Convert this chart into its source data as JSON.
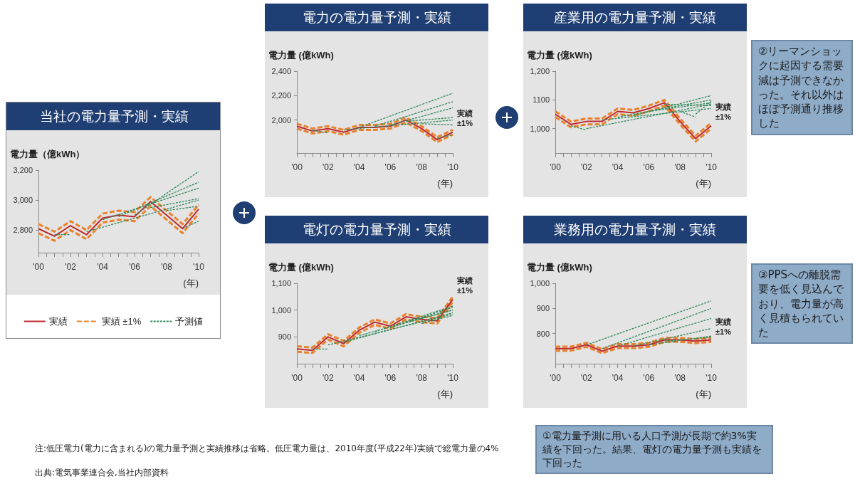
{
  "chart_data": [
    {
      "type": "line",
      "title": "当社の電力量予測・実績",
      "ylabel": "電力量（億kWh）",
      "xlabel": "(年)",
      "x": [
        2000,
        2001,
        2002,
        2003,
        2004,
        2005,
        2006,
        2007,
        2008,
        2009,
        2010
      ],
      "xlim": [
        2000,
        2010
      ],
      "xticks": [
        {
          "value": 2000,
          "label": "'00"
        },
        {
          "value": 2001,
          "label": null
        },
        {
          "value": 2002,
          "label": "'02"
        },
        {
          "value": 2003,
          "label": null
        },
        {
          "value": 2004,
          "label": "'04"
        },
        {
          "value": 2005,
          "label": null
        },
        {
          "value": 2006,
          "label": "'06"
        },
        {
          "value": 2007,
          "label": null
        },
        {
          "value": 2008,
          "label": "'08"
        },
        {
          "value": 2009,
          "label": null
        },
        {
          "value": 2010,
          "label": "'10"
        }
      ],
      "ylim": [
        2650,
        3200
      ],
      "yticks": [
        {
          "value": 2800,
          "label": "2,800"
        },
        {
          "value": 3000,
          "label": "3,000"
        },
        {
          "value": 3200,
          "label": "3,200"
        }
      ],
      "legend": "bottom",
      "marker": "none",
      "grid": false,
      "series": [
        {
          "name": "実績",
          "color": "#c0282d",
          "line_style": "solid",
          "values": [
            2810,
            2760,
            2830,
            2770,
            2880,
            2900,
            2890,
            2990,
            2900,
            2810,
            2940
          ]
        },
        {
          "name": "実績 ±1%",
          "color": "#e8822c",
          "line_style": "dashed",
          "values": [
            2840,
            2790,
            2860,
            2800,
            2910,
            2930,
            2920,
            3020,
            2930,
            2840,
            2970
          ]
        },
        {
          "color": "#e8822c",
          "line_style": "dashed",
          "values": [
            2780,
            2730,
            2800,
            2740,
            2850,
            2870,
            2860,
            2960,
            2870,
            2780,
            2910
          ]
        },
        {
          "name": "予測値",
          "color": "#2f8a5a",
          "line_style": "dashed",
          "x": [
            2001,
            2002
          ],
          "values": [
            2770,
            2770
          ]
        },
        {
          "color": "#2f8a5a",
          "line_style": "dashed",
          "x": [
            2003,
            2010
          ],
          "values": [
            2790,
            3000
          ]
        },
        {
          "color": "#2f8a5a",
          "line_style": "dashed",
          "x": [
            2004,
            2010
          ],
          "values": [
            2870,
            3080
          ]
        },
        {
          "color": "#2f8a5a",
          "line_style": "dashed",
          "x": [
            2005,
            2010
          ],
          "values": [
            2890,
            3120
          ]
        },
        {
          "color": "#2f8a5a",
          "line_style": "dashed",
          "x": [
            2006,
            2010
          ],
          "values": [
            2900,
            3190
          ]
        },
        {
          "color": "#2f8a5a",
          "line_style": "dashed",
          "x": [
            2007,
            2010
          ],
          "values": [
            2950,
            3010
          ]
        },
        {
          "color": "#2f8a5a",
          "line_style": "dashed",
          "x": [
            2008,
            2010
          ],
          "values": [
            2930,
            2960
          ]
        },
        {
          "color": "#2f8a5a",
          "line_style": "dashed",
          "x": [
            2009,
            2010
          ],
          "values": [
            2810,
            2860
          ]
        }
      ],
      "annotations": [
        "注:低圧電力(電力に含まれる)の電力量予測と実績推移は省略。低圧電力量は、2010年度(平成22年)実績で総電力量の4%",
        "出典:電気事業連合会,当社内部資料"
      ]
    },
    {
      "type": "line",
      "title": "電力の電力量予測・実績",
      "ylabel": "電力量 (億kWh)",
      "xlabel": "(年)",
      "x": [
        2000,
        2001,
        2002,
        2003,
        2004,
        2005,
        2006,
        2007,
        2008,
        2009,
        2010
      ],
      "xlim": [
        2000,
        2010
      ],
      "xticks": [
        {
          "value": 2000,
          "label": "'00"
        },
        {
          "value": 2001,
          "label": null
        },
        {
          "value": 2002,
          "label": "'02"
        },
        {
          "value": 2003,
          "label": null
        },
        {
          "value": 2004,
          "label": "'04"
        },
        {
          "value": 2005,
          "label": null
        },
        {
          "value": 2006,
          "label": "'06"
        },
        {
          "value": 2007,
          "label": null
        },
        {
          "value": 2008,
          "label": "'08"
        },
        {
          "value": 2009,
          "label": null
        },
        {
          "value": 2010,
          "label": "'10"
        }
      ],
      "ylim": [
        1730,
        2400
      ],
      "yticks": [
        {
          "value": 2000,
          "label": "2,000"
        },
        {
          "value": 2200,
          "label": "2,200"
        },
        {
          "value": 2400,
          "label": "2,400"
        }
      ],
      "legend": false,
      "marker": "none",
      "grid": false,
      "series": [
        {
          "color": "#c0282d",
          "line_style": "solid",
          "values": [
            1950,
            1910,
            1930,
            1900,
            1940,
            1940,
            1950,
            2000,
            1930,
            1840,
            1900
          ]
        },
        {
          "name": "実績 ±1%",
          "color": "#e8822c",
          "line_style": "dashed",
          "values": [
            1970,
            1930,
            1950,
            1920,
            1960,
            1960,
            1970,
            2020,
            1950,
            1860,
            1920
          ]
        },
        {
          "color": "#e8822c",
          "line_style": "dashed",
          "values": [
            1930,
            1890,
            1910,
            1880,
            1920,
            1920,
            1930,
            1980,
            1910,
            1820,
            1880
          ]
        },
        {
          "color": "#2f8a5a",
          "line_style": "dashed",
          "x": [
            2001,
            2002
          ],
          "values": [
            1915,
            1895
          ]
        },
        {
          "color": "#2f8a5a",
          "line_style": "dashed",
          "x": [
            2003,
            2010
          ],
          "values": [
            1920,
            2000
          ]
        },
        {
          "color": "#2f8a5a",
          "line_style": "dashed",
          "x": [
            2004,
            2010
          ],
          "values": [
            1940,
            2220
          ]
        },
        {
          "color": "#2f8a5a",
          "line_style": "dashed",
          "x": [
            2005,
            2010
          ],
          "values": [
            1950,
            2150
          ]
        },
        {
          "color": "#2f8a5a",
          "line_style": "dashed",
          "x": [
            2006,
            2010
          ],
          "values": [
            1960,
            2100
          ]
        },
        {
          "color": "#2f8a5a",
          "line_style": "dashed",
          "x": [
            2007,
            2010
          ],
          "values": [
            1990,
            2020
          ]
        },
        {
          "color": "#2f8a5a",
          "line_style": "dashed",
          "x": [
            2008,
            2010
          ],
          "values": [
            1970,
            1960
          ]
        },
        {
          "color": "#2f8a5a",
          "line_style": "dashed",
          "x": [
            2009,
            2010
          ],
          "values": [
            1850,
            1880
          ]
        }
      ]
    },
    {
      "type": "line",
      "title": "産業用の電力量予測・実績",
      "ylabel": "電力量 (億kWh)",
      "xlabel": "(年)",
      "x": [
        2000,
        2001,
        2002,
        2003,
        2004,
        2005,
        2006,
        2007,
        2008,
        2009,
        2010
      ],
      "xlim": [
        2000,
        2010
      ],
      "xticks": [
        {
          "value": 2000,
          "label": "'00"
        },
        {
          "value": 2001,
          "label": null
        },
        {
          "value": 2002,
          "label": "'02"
        },
        {
          "value": 2003,
          "label": null
        },
        {
          "value": 2004,
          "label": "'04"
        },
        {
          "value": 2005,
          "label": null
        },
        {
          "value": 2006,
          "label": "'06"
        },
        {
          "value": 2007,
          "label": null
        },
        {
          "value": 2008,
          "label": "'08"
        },
        {
          "value": 2009,
          "label": null
        },
        {
          "value": 2010,
          "label": "'10"
        }
      ],
      "ylim": [
        915,
        1200
      ],
      "yticks": [
        {
          "value": 1000,
          "label": "1,000"
        },
        1100,
        {
          "value": 1200,
          "label": "1,200"
        }
      ],
      "legend": false,
      "marker": "none",
      "grid": false,
      "series": [
        {
          "color": "#c0282d",
          "line_style": "solid",
          "values": [
            1050,
            1015,
            1025,
            1025,
            1060,
            1055,
            1070,
            1090,
            1025,
            965,
            1010
          ]
        },
        {
          "name": "実績 ±1%",
          "color": "#e8822c",
          "line_style": "dashed",
          "values": [
            1060,
            1025,
            1035,
            1035,
            1070,
            1065,
            1080,
            1100,
            1035,
            975,
            1020
          ]
        },
        {
          "color": "#e8822c",
          "line_style": "dashed",
          "values": [
            1040,
            1005,
            1015,
            1015,
            1050,
            1045,
            1060,
            1080,
            1015,
            955,
            1000
          ]
        },
        {
          "color": "#2f8a5a",
          "line_style": "dashed",
          "x": [
            2001,
            2002
          ],
          "values": [
            1010,
            995
          ]
        },
        {
          "color": "#2f8a5a",
          "line_style": "dashed",
          "x": [
            2002,
            2010
          ],
          "values": [
            1000,
            1085
          ]
        },
        {
          "color": "#2f8a5a",
          "line_style": "dashed",
          "x": [
            2003,
            2010
          ],
          "values": [
            1030,
            1070
          ]
        },
        {
          "color": "#2f8a5a",
          "line_style": "dashed",
          "x": [
            2004,
            2010
          ],
          "values": [
            1040,
            1100
          ]
        },
        {
          "color": "#2f8a5a",
          "line_style": "dashed",
          "x": [
            2005,
            2010
          ],
          "values": [
            1045,
            1115
          ]
        },
        {
          "color": "#2f8a5a",
          "line_style": "dashed",
          "x": [
            2006,
            2010
          ],
          "values": [
            1060,
            1090
          ]
        },
        {
          "color": "#2f8a5a",
          "line_style": "dashed",
          "x": [
            2007,
            2010
          ],
          "values": [
            1085,
            1080
          ]
        },
        {
          "color": "#2f8a5a",
          "line_style": "dashed",
          "x": [
            2008,
            2009
          ],
          "values": [
            1060,
            1040
          ]
        },
        {
          "color": "#2f8a5a",
          "line_style": "dashed",
          "x": [
            2009,
            2010
          ],
          "values": [
            1050,
            1095
          ]
        }
      ],
      "annotations": [
        "②リーマンショックに起因する需要減は予測できなかった。それ以外はほぼ予測通り推移した"
      ]
    },
    {
      "type": "line",
      "title": "電灯の電力量予測・実績",
      "ylabel": "電力量 (億kWh)",
      "xlabel": "(年)",
      "x": [
        2000,
        2001,
        2002,
        2003,
        2004,
        2005,
        2006,
        2007,
        2008,
        2009,
        2010
      ],
      "xlim": [
        2000,
        2010
      ],
      "xticks": [
        {
          "value": 2000,
          "label": "'00"
        },
        {
          "value": 2001,
          "label": null
        },
        {
          "value": 2002,
          "label": "'02"
        },
        {
          "value": 2003,
          "label": null
        },
        {
          "value": 2004,
          "label": "'04"
        },
        {
          "value": 2005,
          "label": null
        },
        {
          "value": 2006,
          "label": "'06"
        },
        {
          "value": 2007,
          "label": null
        },
        {
          "value": 2008,
          "label": "'08"
        },
        {
          "value": 2009,
          "label": null
        },
        {
          "value": 2010,
          "label": "'10"
        }
      ],
      "ylim": [
        800,
        1100
      ],
      "yticks": [
        900,
        {
          "value": 1000,
          "label": "1,000"
        },
        {
          "value": 1100,
          "label": "1,100"
        }
      ],
      "legend": false,
      "marker": "none",
      "grid": false,
      "series": [
        {
          "color": "#c0282d",
          "line_style": "solid",
          "values": [
            855,
            850,
            900,
            875,
            925,
            955,
            940,
            975,
            965,
            960,
            1040
          ]
        },
        {
          "name": "実績 ±1%",
          "color": "#e8822c",
          "line_style": "dashed",
          "values": [
            865,
            860,
            910,
            885,
            935,
            965,
            950,
            985,
            975,
            970,
            1050
          ]
        },
        {
          "color": "#e8822c",
          "line_style": "dashed",
          "values": [
            845,
            840,
            890,
            865,
            915,
            945,
            930,
            965,
            955,
            950,
            1030
          ]
        },
        {
          "color": "#2f8a5a",
          "line_style": "dashed",
          "x": [
            2001,
            2002
          ],
          "values": [
            855,
            855
          ]
        },
        {
          "color": "#2f8a5a",
          "line_style": "dashed",
          "x": [
            2002,
            2010
          ],
          "values": [
            870,
            985
          ]
        },
        {
          "color": "#2f8a5a",
          "line_style": "dashed",
          "x": [
            2003,
            2010
          ],
          "values": [
            880,
            990
          ]
        },
        {
          "color": "#2f8a5a",
          "line_style": "dashed",
          "x": [
            2004,
            2010
          ],
          "values": [
            905,
            1000
          ]
        },
        {
          "color": "#2f8a5a",
          "line_style": "dashed",
          "x": [
            2005,
            2010
          ],
          "values": [
            920,
            1015
          ]
        },
        {
          "color": "#2f8a5a",
          "line_style": "dashed",
          "x": [
            2006,
            2010
          ],
          "values": [
            935,
            1010
          ]
        },
        {
          "color": "#2f8a5a",
          "line_style": "dashed",
          "x": [
            2007,
            2010
          ],
          "values": [
            955,
            1000
          ]
        },
        {
          "color": "#2f8a5a",
          "line_style": "dashed",
          "x": [
            2008,
            2010
          ],
          "values": [
            950,
            980
          ]
        }
      ],
      "annotations": [
        "①電力量予測に用いる人口予測が長期で約3%実績を下回った。結果、電灯の電力量予測も実績を下回った"
      ]
    },
    {
      "type": "line",
      "title": "業務用の電力量予測・実績",
      "ylabel": "電力量 (億kWh)",
      "xlabel": "(年)",
      "x": [
        2000,
        2001,
        2002,
        2003,
        2004,
        2005,
        2006,
        2007,
        2008,
        2009,
        2010
      ],
      "xlim": [
        2000,
        2010
      ],
      "xticks": [
        {
          "value": 2000,
          "label": "'00"
        },
        {
          "value": 2001,
          "label": null
        },
        {
          "value": 2002,
          "label": "'02"
        },
        {
          "value": 2003,
          "label": null
        },
        {
          "value": 2004,
          "label": "'04"
        },
        {
          "value": 2005,
          "label": null
        },
        {
          "value": 2006,
          "label": "'06"
        },
        {
          "value": 2007,
          "label": null
        },
        {
          "value": 2008,
          "label": "'08"
        },
        {
          "value": 2009,
          "label": null
        },
        {
          "value": 2010,
          "label": "'10"
        }
      ],
      "ylim": [
        680,
        1000
      ],
      "yticks": [
        800,
        900,
        {
          "value": 1000,
          "label": "1,000"
        }
      ],
      "legend": false,
      "marker": "none",
      "grid": false,
      "series": [
        {
          "color": "#c0282d",
          "line_style": "solid",
          "values": [
            740,
            740,
            755,
            730,
            750,
            750,
            755,
            775,
            775,
            770,
            775
          ]
        },
        {
          "name": "実績 ±1%",
          "color": "#e8822c",
          "line_style": "dashed",
          "values": [
            748,
            748,
            763,
            738,
            758,
            758,
            763,
            783,
            783,
            778,
            783
          ]
        },
        {
          "color": "#e8822c",
          "line_style": "dashed",
          "values": [
            732,
            732,
            747,
            722,
            742,
            742,
            747,
            767,
            767,
            762,
            767
          ]
        },
        {
          "color": "#2f8a5a",
          "line_style": "dashed",
          "x": [
            2002,
            2010
          ],
          "values": [
            755,
            930
          ]
        },
        {
          "color": "#2f8a5a",
          "line_style": "dashed",
          "x": [
            2003,
            2010
          ],
          "values": [
            740,
            900
          ]
        },
        {
          "color": "#2f8a5a",
          "line_style": "dashed",
          "x": [
            2004,
            2010
          ],
          "values": [
            750,
            860
          ]
        },
        {
          "color": "#2f8a5a",
          "line_style": "dashed",
          "x": [
            2005,
            2010
          ],
          "values": [
            750,
            820
          ]
        },
        {
          "color": "#2f8a5a",
          "line_style": "dashed",
          "x": [
            2006,
            2010
          ],
          "values": [
            755,
            790
          ]
        },
        {
          "color": "#2f8a5a",
          "line_style": "dashed",
          "x": [
            2007,
            2010
          ],
          "values": [
            770,
            785
          ]
        }
      ],
      "annotations": [
        "③PPSへの離脱需要を低く見込んでおり、電力量が高く見積もられていた"
      ]
    }
  ]
}
